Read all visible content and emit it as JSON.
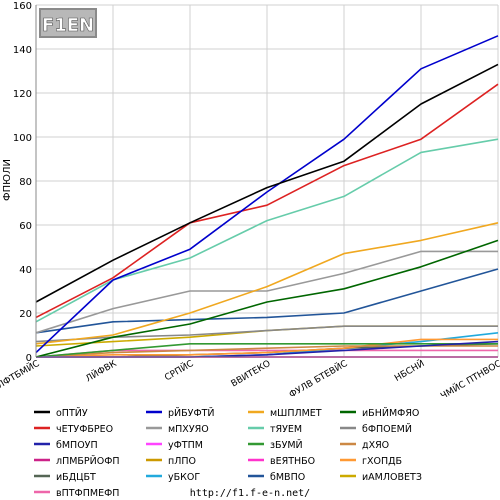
{
  "logo": {
    "text": "F1EN"
  },
  "footer": {
    "url": "http://f1.f-e-n.net/"
  },
  "chart_data": {
    "type": "line",
    "ylabel": "ФПЮЛИ",
    "ylim": [
      0,
      160
    ],
    "yticks": [
      0,
      20,
      40,
      60,
      80,
      100,
      120,
      140,
      160
    ],
    "grid": true,
    "legend": "bottom",
    "categories": [
      "ЛФТБМЙС",
      "ЛЙФВК",
      "СРПЙС",
      "ВВИТЕКО",
      "ФУЛВ БТЕВЙС",
      "НБСНЙ",
      "ЧМЙС ПТНВОС"
    ],
    "series": [
      {
        "name": "оПТЙУ",
        "color": "#000000",
        "values": [
          25,
          44,
          61,
          77,
          89,
          115,
          133
        ]
      },
      {
        "name": "рЙБУФТЙ",
        "color": "#0000cc",
        "values": [
          2,
          35,
          49,
          75,
          99,
          131,
          146
        ]
      },
      {
        "name": "мШПЛМЕТ",
        "color": "#f0a820",
        "values": [
          6,
          10,
          20,
          32,
          47,
          53,
          61
        ]
      },
      {
        "name": "иБНЙМФЯО",
        "color": "#006600",
        "values": [
          0,
          9,
          15,
          25,
          31,
          41,
          53
        ]
      },
      {
        "name": "чЕТУФБРЕО",
        "color": "#dd2222",
        "values": [
          18,
          36,
          61,
          69,
          87,
          99,
          124
        ]
      },
      {
        "name": "мПХУЯО",
        "color": "#999999",
        "values": [
          11,
          22,
          30,
          30,
          38,
          48,
          48
        ]
      },
      {
        "name": "тЯУЕМ",
        "color": "#66ccaa",
        "values": [
          16,
          35,
          45,
          62,
          73,
          93,
          99
        ]
      },
      {
        "name": "бФПОЕМЙ",
        "color": "#888888",
        "values": [
          7,
          9,
          10,
          12,
          14,
          14,
          14
        ]
      },
      {
        "name": "бМПОУП",
        "color": "#2222aa",
        "values": [
          0,
          0,
          0,
          1,
          3,
          5,
          7
        ]
      },
      {
        "name": "уФТПМ",
        "color": "#ff44ff",
        "values": [
          0,
          0,
          0,
          0,
          0,
          0,
          0
        ]
      },
      {
        "name": "зБУМЙ",
        "color": "#339933",
        "values": [
          0,
          3,
          6,
          6,
          6,
          6,
          6
        ]
      },
      {
        "name": "дХЯО",
        "color": "#cc8844",
        "values": [
          0,
          2,
          3,
          4,
          5,
          5,
          5
        ]
      },
      {
        "name": "лПМБРЙОФП",
        "color": "#cc2288",
        "values": [
          0,
          0,
          0,
          0,
          0,
          0,
          0
        ]
      },
      {
        "name": "пЛПО",
        "color": "#cc9900",
        "values": [
          0,
          0,
          0,
          0,
          0,
          0,
          0
        ]
      },
      {
        "name": "вЕЯТНБО",
        "color": "#ff33cc",
        "values": [
          0,
          0,
          0,
          0,
          0,
          0,
          0
        ]
      },
      {
        "name": "гХОПДБ",
        "color": "#ff9933",
        "values": [
          0,
          1,
          1,
          2,
          4,
          8,
          8
        ]
      },
      {
        "name": "иБДЦБТ",
        "color": "#556655",
        "values": [
          0,
          0,
          1,
          2,
          4,
          5,
          6
        ]
      },
      {
        "name": "уБКОГ",
        "color": "#22aadd",
        "values": [
          0,
          0,
          0,
          1,
          4,
          7,
          11
        ]
      },
      {
        "name": "бМВПО",
        "color": "#225599",
        "values": [
          11,
          16,
          17,
          18,
          20,
          30,
          40
        ]
      },
      {
        "name": "иАМЛОВЕТЗ",
        "color": "#ccaa00",
        "values": [
          5,
          7,
          9,
          12,
          14,
          14,
          14
        ]
      },
      {
        "name": "вПТФПМЕФП",
        "color": "#ee66aa",
        "values": [
          0,
          3,
          3,
          3,
          3,
          3,
          3
        ]
      }
    ]
  }
}
